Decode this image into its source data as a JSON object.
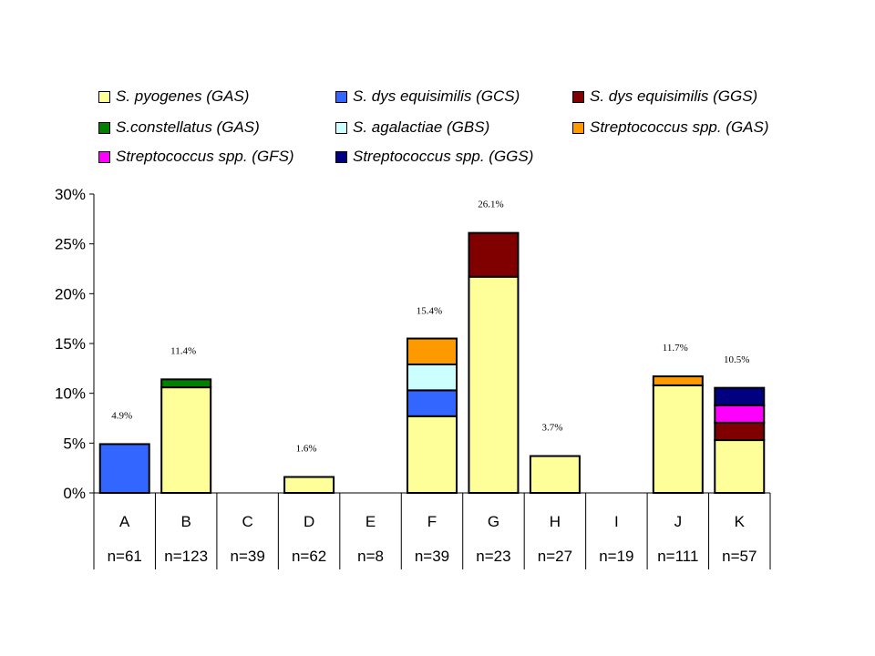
{
  "chart_data": {
    "type": "bar",
    "stacked": true,
    "categories": [
      "A",
      "B",
      "C",
      "D",
      "E",
      "F",
      "G",
      "H",
      "I",
      "J",
      "K"
    ],
    "sample_sizes": [
      "n=61",
      "n=123",
      "n=39",
      "n=62",
      "n=8",
      "n=39",
      "n=23",
      "n=27",
      "n=19",
      "n=111",
      "n=57"
    ],
    "totals_labels": [
      "4.9%",
      "11.4%",
      "",
      "1.6%",
      "",
      "15.4%",
      "26.1%",
      "3.7%",
      "",
      "11.7%",
      "10.5%"
    ],
    "totals": [
      4.9,
      11.4,
      0,
      1.6,
      0,
      15.4,
      26.1,
      3.7,
      0,
      11.7,
      10.5
    ],
    "series": [
      {
        "name": "S. pyogenes (GAS)",
        "color": "#FFFF99",
        "values": [
          0,
          10.6,
          0,
          1.6,
          0,
          7.7,
          21.7,
          3.7,
          0,
          10.8,
          5.3
        ]
      },
      {
        "name": "S. dys equisimilis (GCS)",
        "color": "#3366FF",
        "values": [
          4.9,
          0,
          0,
          0,
          0,
          2.6,
          0,
          0,
          0,
          0,
          0
        ]
      },
      {
        "name": "S. dys equisimilis (GGS)",
        "color": "#800000",
        "values": [
          0,
          0,
          0,
          0,
          0,
          0,
          4.4,
          0,
          0,
          0,
          1.75
        ]
      },
      {
        "name": "S.constellatus (GAS)",
        "color": "#008000",
        "values": [
          0,
          0.8,
          0,
          0,
          0,
          0,
          0,
          0,
          0,
          0,
          0
        ]
      },
      {
        "name": "S. agalactiae (GBS)",
        "color": "#CCFFFF",
        "values": [
          0,
          0,
          0,
          0,
          0,
          2.6,
          0,
          0,
          0,
          0,
          0
        ]
      },
      {
        "name": "Streptococcus spp. (GAS)",
        "color": "#FF9900",
        "values": [
          0,
          0,
          0,
          0,
          0,
          2.6,
          0,
          0,
          0,
          0.9,
          0
        ]
      },
      {
        "name": "Streptococcus spp. (GFS)",
        "color": "#FF00FF",
        "values": [
          0,
          0,
          0,
          0,
          0,
          0,
          0,
          0,
          0,
          0,
          1.75
        ]
      },
      {
        "name": "Streptococcus spp. (GGS)",
        "color": "#000080",
        "values": [
          0,
          0,
          0,
          0,
          0,
          0,
          0,
          0,
          0,
          0,
          1.75
        ]
      }
    ],
    "yticks": [
      "0%",
      "5%",
      "10%",
      "15%",
      "20%",
      "25%",
      "30%"
    ],
    "ylim": [
      0,
      30
    ],
    "grid": false,
    "legend_position": "top"
  }
}
